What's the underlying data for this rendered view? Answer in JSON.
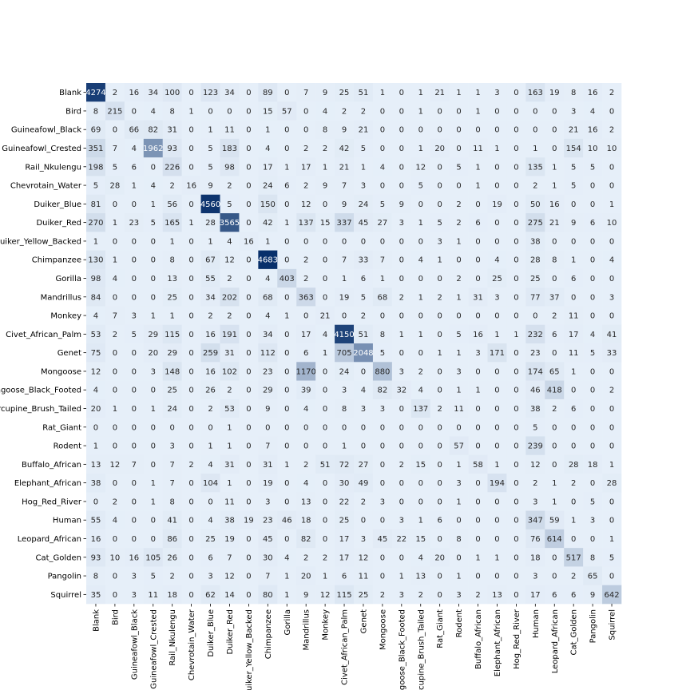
{
  "chart_data": {
    "type": "heatmap",
    "title": "",
    "xlabel": "",
    "ylabel": "",
    "grid": false,
    "colorbar": false,
    "colormap": [
      "#e6eff9",
      "#08306b"
    ],
    "text_colors": {
      "light": "#ffffff",
      "dark": "#262626"
    },
    "labels": [
      "Blank",
      "Bird",
      "Guineafowl_Black",
      "Guineafowl_Crested",
      "Rail_Nkulengu",
      "Chevrotain_Water",
      "Duiker_Blue",
      "Duiker_Red",
      "Duiker_Yellow_Backed",
      "Chimpanzee",
      "Gorilla",
      "Mandrillus",
      "Monkey",
      "Civet_African_Palm",
      "Genet",
      "Mongoose",
      "Mongoose_Black_Footed",
      "Porcupine_Brush_Tailed",
      "Rat_Giant",
      "Rodent",
      "Buffalo_African",
      "Elephant_African",
      "Hog_Red_River",
      "Human",
      "Leopard_African",
      "Cat_Golden",
      "Pangolin",
      "Squirrel"
    ],
    "matrix": [
      [
        4274,
        2,
        16,
        34,
        100,
        0,
        123,
        34,
        0,
        89,
        0,
        7,
        9,
        25,
        51,
        1,
        0,
        1,
        21,
        1,
        1,
        3,
        0,
        163,
        19,
        8,
        16,
        2
      ],
      [
        8,
        215,
        0,
        4,
        8,
        1,
        0,
        0,
        0,
        15,
        57,
        0,
        4,
        2,
        2,
        0,
        0,
        1,
        0,
        0,
        1,
        0,
        0,
        0,
        0,
        3,
        4,
        0
      ],
      [
        69,
        0,
        66,
        82,
        31,
        0,
        1,
        11,
        0,
        1,
        0,
        0,
        8,
        9,
        21,
        0,
        0,
        0,
        0,
        0,
        0,
        0,
        0,
        0,
        0,
        21,
        16,
        2
      ],
      [
        351,
        7,
        4,
        1962,
        93,
        0,
        5,
        183,
        0,
        4,
        0,
        2,
        2,
        42,
        5,
        0,
        0,
        1,
        20,
        0,
        11,
        1,
        0,
        1,
        0,
        154,
        10,
        10
      ],
      [
        198,
        5,
        6,
        0,
        226,
        0,
        5,
        98,
        0,
        17,
        1,
        17,
        1,
        21,
        1,
        4,
        0,
        12,
        0,
        5,
        1,
        0,
        0,
        135,
        1,
        5,
        5,
        0
      ],
      [
        5,
        28,
        1,
        4,
        2,
        16,
        9,
        2,
        0,
        24,
        6,
        2,
        9,
        7,
        3,
        0,
        0,
        5,
        0,
        0,
        1,
        0,
        0,
        2,
        1,
        5,
        0,
        0
      ],
      [
        81,
        0,
        0,
        1,
        56,
        0,
        4560,
        5,
        0,
        150,
        0,
        12,
        0,
        9,
        24,
        5,
        9,
        0,
        0,
        2,
        0,
        19,
        0,
        50,
        16,
        0,
        0,
        1
      ],
      [
        270,
        1,
        23,
        5,
        165,
        1,
        28,
        3565,
        0,
        42,
        1,
        137,
        15,
        337,
        45,
        27,
        3,
        1,
        5,
        2,
        6,
        0,
        0,
        275,
        21,
        9,
        6,
        10
      ],
      [
        1,
        0,
        0,
        0,
        1,
        0,
        1,
        4,
        16,
        1,
        0,
        0,
        0,
        0,
        0,
        0,
        0,
        0,
        3,
        1,
        0,
        0,
        0,
        38,
        0,
        0,
        0,
        0
      ],
      [
        130,
        1,
        0,
        0,
        8,
        0,
        67,
        12,
        0,
        4683,
        0,
        2,
        0,
        7,
        33,
        7,
        0,
        4,
        1,
        0,
        0,
        4,
        0,
        28,
        8,
        1,
        0,
        4
      ],
      [
        98,
        4,
        0,
        0,
        13,
        0,
        55,
        2,
        0,
        4,
        403,
        2,
        0,
        1,
        6,
        1,
        0,
        0,
        0,
        2,
        0,
        25,
        0,
        25,
        0,
        6,
        0,
        0
      ],
      [
        84,
        0,
        0,
        0,
        25,
        0,
        34,
        202,
        0,
        68,
        0,
        363,
        0,
        19,
        5,
        68,
        2,
        1,
        2,
        1,
        31,
        3,
        0,
        77,
        37,
        0,
        0,
        3
      ],
      [
        4,
        7,
        3,
        1,
        1,
        0,
        2,
        2,
        0,
        4,
        1,
        0,
        21,
        0,
        2,
        0,
        0,
        0,
        0,
        0,
        0,
        0,
        0,
        0,
        2,
        11,
        0,
        0
      ],
      [
        53,
        2,
        5,
        29,
        115,
        0,
        16,
        191,
        0,
        34,
        0,
        17,
        4,
        4150,
        51,
        8,
        1,
        1,
        0,
        5,
        16,
        1,
        1,
        232,
        6,
        17,
        4,
        41
      ],
      [
        75,
        0,
        0,
        20,
        29,
        0,
        259,
        31,
        0,
        112,
        0,
        6,
        1,
        705,
        2048,
        5,
        0,
        0,
        1,
        1,
        3,
        171,
        0,
        23,
        0,
        11,
        5,
        33
      ],
      [
        12,
        0,
        0,
        3,
        148,
        0,
        16,
        102,
        0,
        23,
        0,
        1170,
        0,
        24,
        0,
        880,
        3,
        2,
        0,
        3,
        0,
        0,
        0,
        174,
        65,
        1,
        0,
        0
      ],
      [
        4,
        0,
        0,
        0,
        25,
        0,
        26,
        2,
        0,
        29,
        0,
        39,
        0,
        3,
        4,
        82,
        32,
        4,
        0,
        1,
        1,
        0,
        0,
        46,
        418,
        0,
        0,
        2
      ],
      [
        20,
        1,
        0,
        1,
        24,
        0,
        2,
        53,
        0,
        9,
        0,
        4,
        0,
        8,
        3,
        3,
        0,
        137,
        2,
        11,
        0,
        0,
        0,
        38,
        2,
        6,
        0,
        0
      ],
      [
        0,
        0,
        0,
        0,
        0,
        0,
        0,
        1,
        0,
        0,
        0,
        0,
        0,
        0,
        0,
        0,
        0,
        0,
        0,
        0,
        0,
        0,
        0,
        5,
        0,
        0,
        0,
        0
      ],
      [
        1,
        0,
        0,
        0,
        3,
        0,
        1,
        1,
        0,
        7,
        0,
        0,
        0,
        1,
        0,
        0,
        0,
        0,
        0,
        57,
        0,
        0,
        0,
        239,
        0,
        0,
        0,
        0
      ],
      [
        13,
        12,
        7,
        0,
        7,
        2,
        4,
        31,
        0,
        31,
        1,
        2,
        51,
        72,
        27,
        0,
        2,
        15,
        0,
        1,
        58,
        1,
        0,
        12,
        0,
        28,
        18,
        1
      ],
      [
        38,
        0,
        0,
        1,
        7,
        0,
        104,
        1,
        0,
        19,
        0,
        4,
        0,
        30,
        49,
        0,
        0,
        0,
        0,
        3,
        0,
        194,
        0,
        2,
        1,
        2,
        0,
        28
      ],
      [
        0,
        2,
        0,
        1,
        8,
        0,
        0,
        11,
        0,
        3,
        0,
        13,
        0,
        22,
        2,
        3,
        0,
        0,
        0,
        1,
        0,
        0,
        0,
        3,
        1,
        0,
        5,
        0
      ],
      [
        55,
        4,
        0,
        0,
        41,
        0,
        4,
        38,
        19,
        23,
        46,
        18,
        0,
        25,
        0,
        0,
        3,
        1,
        6,
        0,
        0,
        0,
        0,
        347,
        59,
        1,
        3,
        0
      ],
      [
        16,
        0,
        0,
        0,
        86,
        0,
        25,
        19,
        0,
        45,
        0,
        82,
        0,
        17,
        3,
        45,
        22,
        15,
        0,
        8,
        0,
        0,
        0,
        76,
        614,
        0,
        0,
        1
      ],
      [
        93,
        10,
        16,
        105,
        26,
        0,
        6,
        7,
        0,
        30,
        4,
        2,
        2,
        17,
        12,
        0,
        0,
        4,
        20,
        0,
        1,
        1,
        0,
        18,
        0,
        517,
        8,
        5
      ],
      [
        8,
        0,
        3,
        5,
        2,
        0,
        3,
        12,
        0,
        7,
        1,
        20,
        1,
        6,
        11,
        0,
        1,
        13,
        0,
        1,
        0,
        0,
        0,
        3,
        0,
        2,
        65,
        0
      ],
      [
        35,
        0,
        3,
        11,
        18,
        0,
        62,
        14,
        0,
        80,
        1,
        9,
        12,
        115,
        25,
        2,
        3,
        2,
        0,
        3,
        2,
        13,
        0,
        17,
        6,
        6,
        9,
        642
      ]
    ]
  }
}
